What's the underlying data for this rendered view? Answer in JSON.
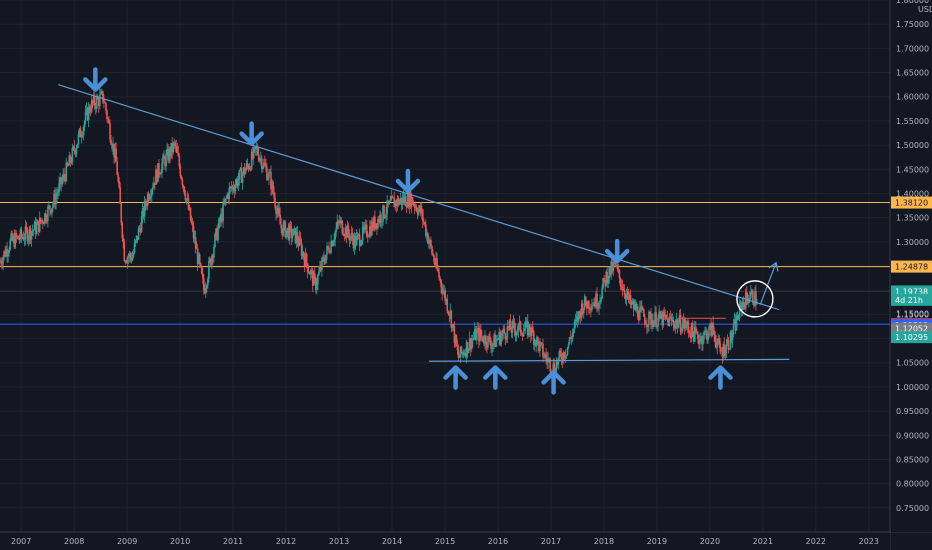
{
  "chart_data": {
    "type": "candlestick",
    "currency_label": "USD",
    "x_ticks": [
      "2007",
      "2008",
      "2009",
      "2010",
      "2011",
      "2012",
      "2013",
      "2014",
      "2015",
      "2016",
      "2017",
      "2018",
      "2019",
      "2020",
      "2021",
      "2022",
      "2023"
    ],
    "xlim": [
      2006.6,
      2023.4
    ],
    "y_ticks": [
      "0.75000",
      "0.80000",
      "0.85000",
      "0.90000",
      "0.95000",
      "1.00000",
      "1.05000",
      "1.10000",
      "1.15000",
      "1.20000",
      "1.25000",
      "1.30000",
      "1.35000",
      "1.40000",
      "1.45000",
      "1.50000",
      "1.55000",
      "1.60000",
      "1.65000",
      "1.70000",
      "1.75000",
      "1.80000"
    ],
    "ylim": [
      0.7,
      1.8
    ],
    "grid": true,
    "price_path": [
      [
        2006.6,
        1.26
      ],
      [
        2006.8,
        1.3
      ],
      [
        2007.0,
        1.31
      ],
      [
        2007.3,
        1.33
      ],
      [
        2007.6,
        1.38
      ],
      [
        2007.9,
        1.46
      ],
      [
        2008.1,
        1.52
      ],
      [
        2008.3,
        1.58
      ],
      [
        2008.55,
        1.6
      ],
      [
        2008.8,
        1.46
      ],
      [
        2008.95,
        1.27
      ],
      [
        2009.1,
        1.27
      ],
      [
        2009.4,
        1.4
      ],
      [
        2009.6,
        1.45
      ],
      [
        2009.9,
        1.5
      ],
      [
        2010.1,
        1.4
      ],
      [
        2010.45,
        1.2
      ],
      [
        2010.65,
        1.3
      ],
      [
        2010.9,
        1.4
      ],
      [
        2011.3,
        1.46
      ],
      [
        2011.45,
        1.49
      ],
      [
        2011.7,
        1.43
      ],
      [
        2011.9,
        1.33
      ],
      [
        2012.2,
        1.31
      ],
      [
        2012.55,
        1.21
      ],
      [
        2012.7,
        1.26
      ],
      [
        2013.0,
        1.34
      ],
      [
        2013.3,
        1.3
      ],
      [
        2013.6,
        1.33
      ],
      [
        2014.0,
        1.38
      ],
      [
        2014.35,
        1.39
      ],
      [
        2014.55,
        1.36
      ],
      [
        2014.8,
        1.26
      ],
      [
        2015.1,
        1.15
      ],
      [
        2015.25,
        1.06
      ],
      [
        2015.6,
        1.11
      ],
      [
        2015.9,
        1.09
      ],
      [
        2016.2,
        1.12
      ],
      [
        2016.6,
        1.12
      ],
      [
        2016.9,
        1.06
      ],
      [
        2017.05,
        1.04
      ],
      [
        2017.3,
        1.08
      ],
      [
        2017.6,
        1.17
      ],
      [
        2017.9,
        1.18
      ],
      [
        2018.05,
        1.23
      ],
      [
        2018.2,
        1.25
      ],
      [
        2018.5,
        1.17
      ],
      [
        2018.8,
        1.14
      ],
      [
        2019.1,
        1.14
      ],
      [
        2019.5,
        1.13
      ],
      [
        2019.8,
        1.1
      ],
      [
        2020.05,
        1.12
      ],
      [
        2020.2,
        1.07
      ],
      [
        2020.4,
        1.1
      ],
      [
        2020.6,
        1.17
      ],
      [
        2020.75,
        1.19
      ],
      [
        2020.9,
        1.18
      ]
    ],
    "trendlines": [
      {
        "kind": "descending-resistance",
        "x1": 2007.7,
        "y1": 1.625,
        "x2": 2021.3,
        "y2": 1.16
      },
      {
        "kind": "support",
        "x1": 2014.7,
        "y1": 1.053,
        "x2": 2021.5,
        "y2": 1.057
      },
      {
        "kind": "projection-arrow",
        "x1": 2020.95,
        "y1": 1.17,
        "x2": 2021.25,
        "y2": 1.257
      }
    ],
    "horizontal_levels": [
      {
        "value": 1.3812,
        "label": "1.38120",
        "style": "orange-line",
        "color": "#ffb74d"
      },
      {
        "value": 1.24878,
        "label": "1.24878",
        "style": "orange-line",
        "color": "#ffb74d"
      },
      {
        "value": 1.19738,
        "label": "1.19738",
        "style": "blue-dotted",
        "color": "#2196f3"
      },
      {
        "value": 1.1297,
        "label": "1.12970",
        "style": "blue-line",
        "color": "#2962ff"
      },
      {
        "value": 1.12793,
        "label": "1.12793",
        "style": "tag-only",
        "color": "#2962ff"
      },
      {
        "value": 1.12052,
        "label": "1.12052",
        "style": "tag-only",
        "color": "#787b86"
      },
      {
        "value": 1.10295,
        "label": "1.10295",
        "style": "tag-only",
        "color": "#26a69a"
      }
    ],
    "last_price_tag": {
      "value": 1.19738,
      "label": "1.19738",
      "color": "#26a69a"
    },
    "countdown_tag": {
      "value": 1.18,
      "label": "4d 21h"
    },
    "overlap_tag": {
      "value": 1.152,
      "label": "1.15000"
    },
    "small_level": {
      "value": 1.142,
      "x1": 2019.4,
      "x2": 2020.3,
      "color": "#ef5350"
    },
    "down_arrows": [
      [
        2008.4,
        1.615
      ],
      [
        2011.35,
        1.503
      ],
      [
        2014.3,
        1.405
      ],
      [
        2018.25,
        1.26
      ]
    ],
    "up_arrows": [
      [
        2015.2,
        1.04
      ],
      [
        2015.95,
        1.04
      ],
      [
        2017.05,
        1.03
      ],
      [
        2020.2,
        1.04
      ]
    ],
    "highlight_circle": {
      "x": 2020.85,
      "y": 1.182,
      "r": 18
    }
  }
}
